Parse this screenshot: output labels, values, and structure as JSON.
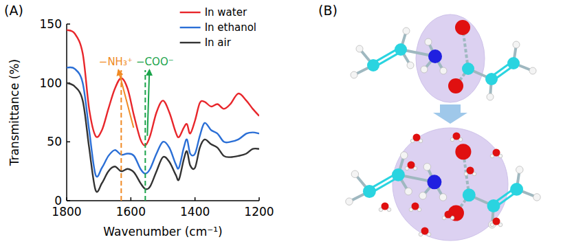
{
  "chart_data": {
    "type": "line",
    "panel_label": "(A)",
    "x_label": "Wavenumber (cm⁻¹)",
    "y_label": "Transmittance (%)",
    "x": [
      1800,
      1775,
      1750,
      1730,
      1710,
      1690,
      1670,
      1650,
      1630,
      1610,
      1590,
      1570,
      1555,
      1540,
      1520,
      1500,
      1480,
      1460,
      1450,
      1435,
      1425,
      1415,
      1400,
      1385,
      1370,
      1350,
      1330,
      1310,
      1290,
      1265,
      1240,
      1220,
      1200
    ],
    "series": [
      {
        "name": "In water",
        "color": "#e8262b",
        "values": [
          145,
          142,
          125,
          78,
          55,
          60,
          78,
          95,
          104,
          95,
          72,
          52,
          47,
          55,
          75,
          85,
          75,
          58,
          54,
          62,
          65,
          57,
          68,
          83,
          84,
          80,
          82,
          78,
          82,
          91,
          85,
          78,
          72
        ]
      },
      {
        "name": "In ethanol",
        "color": "#2b6fd6",
        "values": [
          113,
          112,
          100,
          60,
          22,
          28,
          38,
          43,
          39,
          40,
          38,
          27,
          23,
          27,
          40,
          50,
          45,
          31,
          28,
          45,
          52,
          40,
          40,
          55,
          66,
          60,
          57,
          50,
          50,
          52,
          57,
          58,
          57
        ]
      },
      {
        "name": "In air",
        "color": "#333333",
        "values": [
          100,
          97,
          85,
          45,
          9,
          15,
          25,
          29,
          25,
          27,
          24,
          15,
          10,
          12,
          25,
          37,
          33,
          22,
          18,
          35,
          42,
          30,
          28,
          45,
          52,
          48,
          45,
          38,
          37,
          38,
          40,
          44,
          44
        ]
      }
    ],
    "xlim": [
      1800,
      1200
    ],
    "xticks": [
      1800,
      1600,
      1400,
      1200
    ],
    "ylim": [
      0,
      150
    ],
    "yticks": [
      0,
      50,
      100,
      150
    ],
    "legend": "top-right",
    "grid": false,
    "annotations": [
      {
        "text": "−NH₃⁺",
        "x": 1630,
        "color": "#f08a24"
      },
      {
        "text": "−COO⁻",
        "x": 1555,
        "color": "#1aa34a"
      }
    ]
  },
  "diagram": {
    "panel_label": "(B)"
  }
}
